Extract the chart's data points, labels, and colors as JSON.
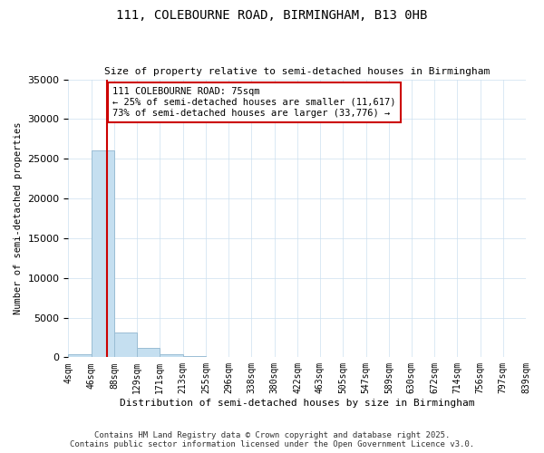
{
  "title1": "111, COLEBOURNE ROAD, BIRMINGHAM, B13 0HB",
  "title2": "Size of property relative to semi-detached houses in Birmingham",
  "xlabel": "Distribution of semi-detached houses by size in Birmingham",
  "ylabel": "Number of semi-detached properties",
  "bin_edges": [
    4,
    46,
    88,
    129,
    171,
    213,
    255,
    296,
    338,
    380,
    422,
    463,
    505,
    547,
    589,
    630,
    672,
    714,
    756,
    797,
    839
  ],
  "bar_heights": [
    400,
    26000,
    3100,
    1200,
    400,
    200,
    80,
    0,
    0,
    0,
    0,
    0,
    0,
    0,
    0,
    0,
    0,
    0,
    0,
    0
  ],
  "property_size": 75,
  "property_label": "111 COLEBOURNE ROAD: 75sqm",
  "pct_smaller": 25,
  "pct_larger": 73,
  "count_smaller": 11617,
  "count_larger": 33776,
  "bar_color": "#c5dff0",
  "bar_edge_color": "#9abdd4",
  "line_color": "#cc0000",
  "annotation_box_color": "#cc0000",
  "background_color": "#ffffff",
  "grid_color": "#cce0f0",
  "ylim": [
    0,
    35000
  ],
  "yticks": [
    0,
    5000,
    10000,
    15000,
    20000,
    25000,
    30000,
    35000
  ],
  "footer1": "Contains HM Land Registry data © Crown copyright and database right 2025.",
  "footer2": "Contains public sector information licensed under the Open Government Licence v3.0."
}
